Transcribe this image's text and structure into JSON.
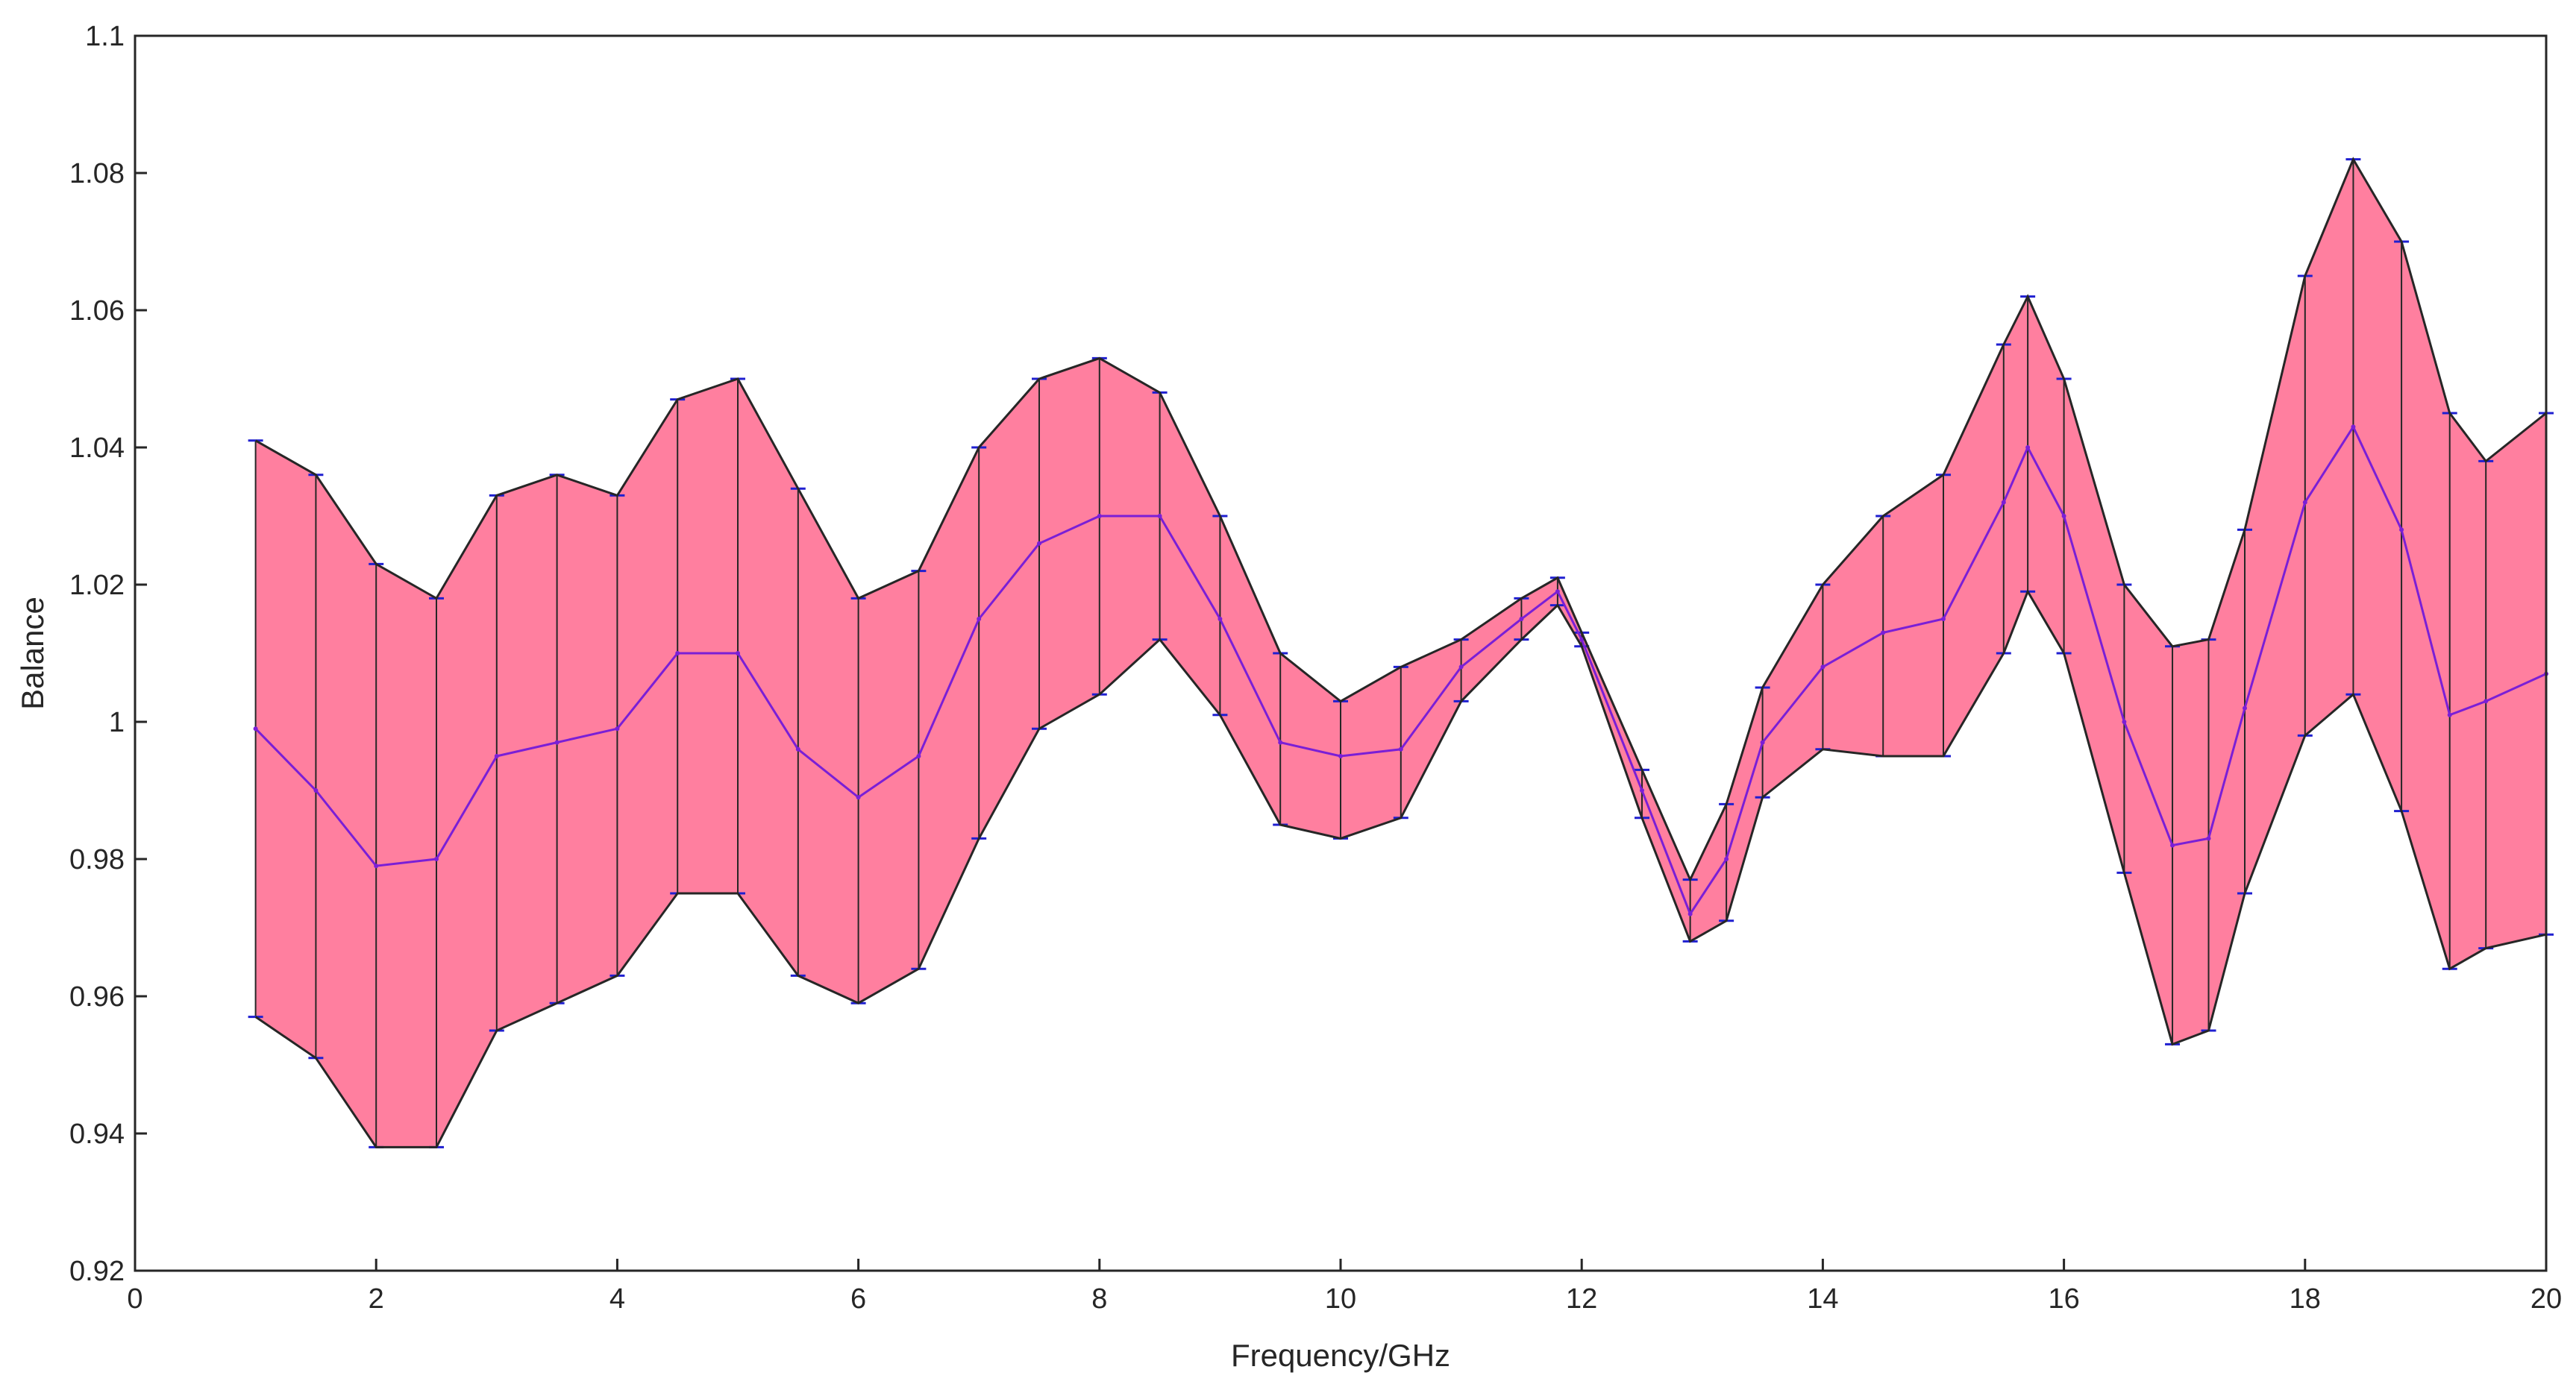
{
  "chart_data": {
    "type": "area",
    "xlabel": "Frequency/GHz",
    "ylabel": "Balance",
    "xlim": [
      0,
      20
    ],
    "ylim": [
      0.92,
      1.1
    ],
    "xticks": [
      0,
      2,
      4,
      6,
      8,
      10,
      12,
      14,
      16,
      18,
      20
    ],
    "xtick_labels": [
      "0",
      "2",
      "4",
      "6",
      "8",
      "10",
      "12",
      "14",
      "16",
      "18",
      "20"
    ],
    "yticks": [
      0.92,
      0.94,
      0.96,
      0.98,
      1.0,
      1.02,
      1.04,
      1.06,
      1.08,
      1.1
    ],
    "ytick_labels": [
      "0.92",
      "0.94",
      "0.96",
      "0.98",
      "1",
      "1.02",
      "1.04",
      "1.06",
      "1.08",
      "1.1"
    ],
    "grid": false,
    "x": [
      1.0,
      1.5,
      2.0,
      2.5,
      3.0,
      3.5,
      4.0,
      4.5,
      5.0,
      5.5,
      6.0,
      6.5,
      7.0,
      7.5,
      8.0,
      8.5,
      9.0,
      9.5,
      10.0,
      10.5,
      11.0,
      11.5,
      11.8,
      12.0,
      12.5,
      12.9,
      13.2,
      13.5,
      14.0,
      14.5,
      15.0,
      15.5,
      15.7,
      16.0,
      16.5,
      16.9,
      17.2,
      17.5,
      18.0,
      18.4,
      18.8,
      19.2,
      19.5,
      20.0
    ],
    "series": [
      {
        "values": [
          1.041,
          1.036,
          1.023,
          1.018,
          1.033,
          1.036,
          1.033,
          1.047,
          1.05,
          1.034,
          1.018,
          1.022,
          1.04,
          1.05,
          1.053,
          1.048,
          1.03,
          1.01,
          1.003,
          1.008,
          1.012,
          1.018,
          1.021,
          1.013,
          0.993,
          0.977,
          0.988,
          1.005,
          1.02,
          1.03,
          1.036,
          1.055,
          1.062,
          1.05,
          1.02,
          1.011,
          1.012,
          1.028,
          1.065,
          1.082,
          1.07,
          1.045,
          1.038,
          1.045
        ]
      },
      {
        "values": [
          0.999,
          0.99,
          0.979,
          0.98,
          0.995,
          0.997,
          0.999,
          1.01,
          1.01,
          0.996,
          0.989,
          0.995,
          1.015,
          1.026,
          1.03,
          1.03,
          1.015,
          0.997,
          0.995,
          0.996,
          1.008,
          1.015,
          1.019,
          1.012,
          0.99,
          0.972,
          0.98,
          0.997,
          1.008,
          1.013,
          1.015,
          1.032,
          1.04,
          1.03,
          1.0,
          0.982,
          0.983,
          1.002,
          1.032,
          1.043,
          1.028,
          1.001,
          1.003,
          1.007
        ]
      },
      {
        "values": [
          0.957,
          0.951,
          0.938,
          0.938,
          0.955,
          0.959,
          0.963,
          0.975,
          0.975,
          0.963,
          0.959,
          0.964,
          0.983,
          0.999,
          1.004,
          1.012,
          1.001,
          0.985,
          0.983,
          0.986,
          1.003,
          1.012,
          1.017,
          1.011,
          0.986,
          0.968,
          0.971,
          0.989,
          0.996,
          0.995,
          0.995,
          1.01,
          1.019,
          1.01,
          0.978,
          0.953,
          0.955,
          0.975,
          0.998,
          1.004,
          0.987,
          0.964,
          0.967,
          0.969
        ]
      }
    ],
    "colors": {
      "fill": "#ff7f9f",
      "edge": "#262626",
      "errorbar": "#1f1fd0",
      "mean_line": "#7a1fd6"
    }
  }
}
